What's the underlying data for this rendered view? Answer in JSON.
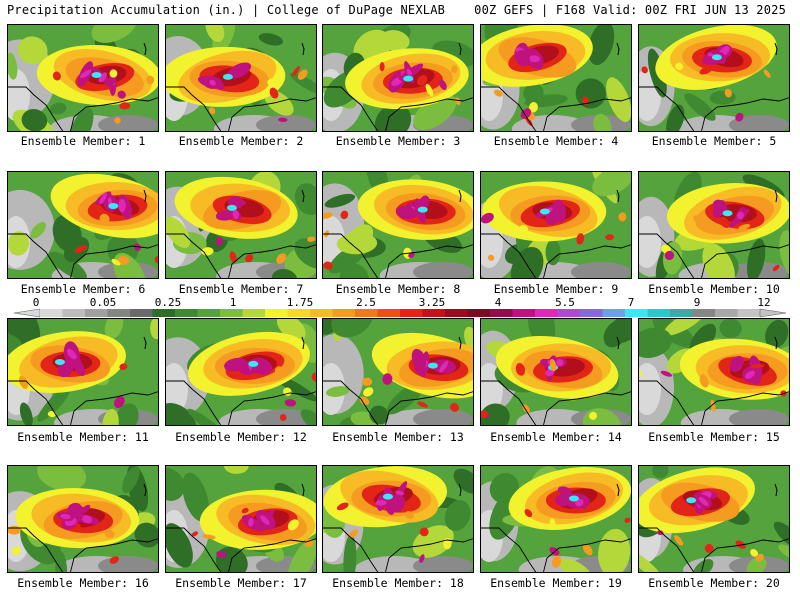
{
  "header": {
    "title_left": "Precipitation Accumulation (in.) | College of DuPage NEXLAB",
    "title_right": "00Z GEFS | F168 Valid: 00Z FRI JUN 13 2025"
  },
  "colorbar": {
    "tick_labels": [
      "0",
      "0.05",
      "0.25",
      "1",
      "1.75",
      "2.5",
      "3.25",
      "4",
      "5.5",
      "7",
      "9",
      "12"
    ],
    "colors": [
      "#d9d9d9",
      "#bdbdbd",
      "#a0a0a0",
      "#858585",
      "#6a6a6a",
      "#2f6e27",
      "#3f8a31",
      "#55a33d",
      "#7bbd3e",
      "#b4d83a",
      "#f2f22e",
      "#f6d82a",
      "#f7bc25",
      "#f59b20",
      "#f1781c",
      "#ec4f19",
      "#e22516",
      "#c4111a",
      "#9e0b1d",
      "#7d0a23",
      "#980a50",
      "#c0127f",
      "#df28b7",
      "#b247d6",
      "#8868e0",
      "#6aa0ec",
      "#39e8f2",
      "#2ac9c7",
      "#3fa9a6",
      "#868686",
      "#a8a8a8",
      "#c4c4c4"
    ]
  },
  "panels": [
    {
      "label": "Ensemble Member: 1"
    },
    {
      "label": "Ensemble Member: 2"
    },
    {
      "label": "Ensemble Member: 3"
    },
    {
      "label": "Ensemble Member: 4"
    },
    {
      "label": "Ensemble Member: 5"
    },
    {
      "label": "Ensemble Member: 6"
    },
    {
      "label": "Ensemble Member: 7"
    },
    {
      "label": "Ensemble Member: 8"
    },
    {
      "label": "Ensemble Member: 9"
    },
    {
      "label": "Ensemble Member: 10"
    },
    {
      "label": "Ensemble Member: 11"
    },
    {
      "label": "Ensemble Member: 12"
    },
    {
      "label": "Ensemble Member: 13"
    },
    {
      "label": "Ensemble Member: 14"
    },
    {
      "label": "Ensemble Member: 15"
    },
    {
      "label": "Ensemble Member: 16"
    },
    {
      "label": "Ensemble Member: 17"
    },
    {
      "label": "Ensemble Member: 18"
    },
    {
      "label": "Ensemble Member: 19"
    },
    {
      "label": "Ensemble Member: 20"
    }
  ]
}
